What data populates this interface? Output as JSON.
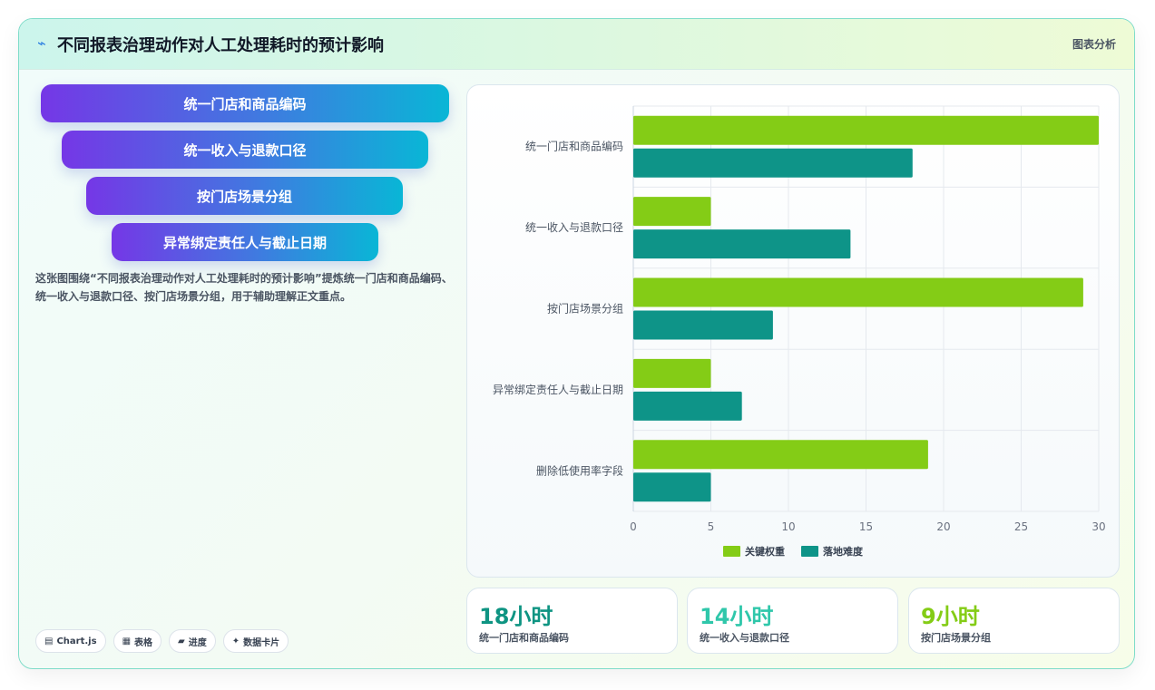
{
  "header": {
    "logo_icon": "sparkle-icon",
    "title": "不同报表治理动作对人工处理耗时的预计影响",
    "tag": "图表分析"
  },
  "funnel": {
    "items": [
      {
        "label": "统一门店和商品编码"
      },
      {
        "label": "统一收入与退款口径"
      },
      {
        "label": "按门店场景分组"
      },
      {
        "label": "异常绑定责任人与截止日期"
      }
    ]
  },
  "description": "这张图围绕“不同报表治理动作对人工处理耗时的预计影响”提炼统一门店和商品编码、统一收入与退款口径、按门店场景分组，用于辅助理解正文重点。",
  "chips": [
    {
      "icon": "chart-icon",
      "glyph": "▤",
      "label": "Chart.js"
    },
    {
      "icon": "table-icon",
      "glyph": "▦",
      "label": "表格"
    },
    {
      "icon": "progress-icon",
      "glyph": "▰",
      "label": "进度"
    },
    {
      "icon": "sparkle-icon",
      "glyph": "✦",
      "label": "数据卡片"
    }
  ],
  "kpis": [
    {
      "value": "18小时",
      "label": "统一门店和商品编码",
      "color": "#0e9482"
    },
    {
      "value": "14小时",
      "label": "统一收入与退款口径",
      "color": "#2fc7aa"
    },
    {
      "value": "9小时",
      "label": "按门店场景分组",
      "color": "#84cc16"
    }
  ],
  "chart_data": {
    "type": "bar",
    "orientation": "horizontal",
    "categories": [
      "统一门店和商品编码",
      "统一收入与退款口径",
      "按门店场景分组",
      "异常绑定责任人与截止日期",
      "删除低使用率字段"
    ],
    "series": [
      {
        "name": "关键权重",
        "color": "#84cc16",
        "values": [
          30,
          5,
          29,
          5,
          19
        ]
      },
      {
        "name": "落地难度",
        "color": "#0e9488",
        "values": [
          18,
          14,
          9,
          7,
          5
        ]
      }
    ],
    "xlim": [
      0,
      30
    ],
    "xticks": [
      0,
      5,
      10,
      15,
      20,
      25,
      30
    ],
    "grid": true,
    "legend": "bottom"
  }
}
